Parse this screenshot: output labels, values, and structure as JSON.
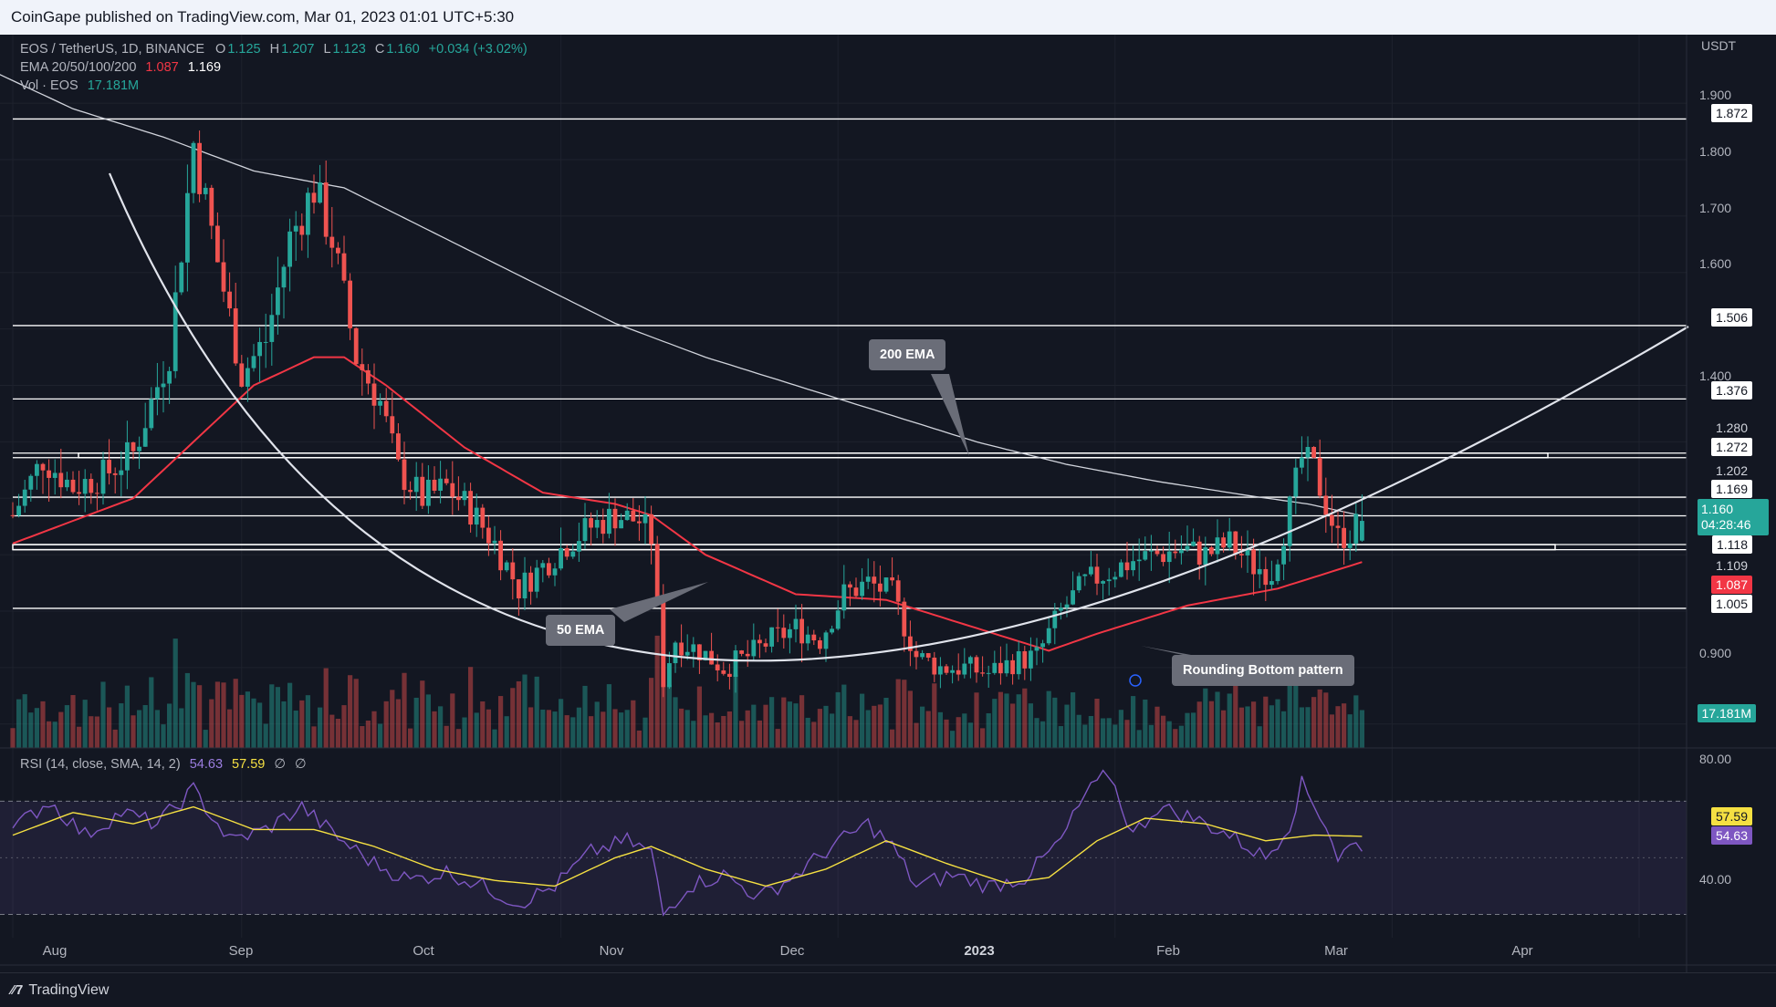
{
  "header": {
    "publisher_text": "CoinGape published on TradingView.com, Mar 01, 2023 01:01 UTC+5:30"
  },
  "legend": {
    "symbol": "EOS / TetherUS, 1D, BINANCE",
    "o_label": "O",
    "o_value": "1.125",
    "h_label": "H",
    "h_value": "1.207",
    "l_label": "L",
    "l_value": "1.123",
    "c_label": "C",
    "c_value": "1.160",
    "change": "+0.034 (+3.02%)",
    "ema_label": "EMA 20/50/100/200",
    "ema_val1": "1.087",
    "ema_val2": "1.169",
    "vol_label": "Vol · EOS",
    "vol_value": "17.181M",
    "rsi_label": "RSI (14, close, SMA, 14, 2)",
    "rsi_value": "54.63",
    "rsi_sma_value": "57.59",
    "rsi_extra1": "∅",
    "rsi_extra2": "∅"
  },
  "axis": {
    "currency": "USDT",
    "price_ticks": [
      "1.900",
      "1.800",
      "1.700",
      "1.600",
      "1.400",
      "0.900"
    ],
    "rsi_ticks": [
      "80.00",
      "40.00"
    ],
    "x_ticks": [
      "Aug",
      "Sep",
      "Oct",
      "Nov",
      "Dec",
      "2023",
      "Feb",
      "Mar",
      "Apr"
    ]
  },
  "price_tags": {
    "r1": "1.872",
    "r2": "1.506",
    "r3": "1.376",
    "r4a": "1.280",
    "r4b": "1.272",
    "r5a": "1.202",
    "r5b": "1.169",
    "current": "1.160",
    "countdown": "04:28:46",
    "s1a": "1.118",
    "s1b": "1.109",
    "ema50": "1.087",
    "s2": "1.005",
    "volume": "17.181M",
    "rsi_sma": "57.59",
    "rsi": "54.63"
  },
  "annotations": {
    "ema200": "200 EMA",
    "ema50": "50 EMA",
    "pattern": "Rounding Bottom pattern"
  },
  "footer": {
    "brand": "TradingView"
  },
  "colors": {
    "background": "#131722",
    "up": "#26a69a",
    "down": "#ef5350",
    "ema50": "#f23645",
    "ema200": "#d1d4dc",
    "rsi": "#7e57c2",
    "rsi_sma": "#f5e042"
  },
  "chart_data": {
    "type": "candlestick",
    "title": "EOS / TetherUS, 1D, BINANCE",
    "ylabel": "USDT",
    "ylim": [
      0.79,
      1.96
    ],
    "x_range": [
      "2023-07-25",
      "2024-04-13"
    ],
    "x_ticks": [
      "Aug",
      "Sep",
      "Oct",
      "Nov",
      "Dec",
      "2023",
      "Feb",
      "Mar",
      "Apr"
    ],
    "horizontal_levels": [
      1.872,
      1.506,
      1.376,
      1.28,
      1.272,
      1.202,
      1.169,
      1.118,
      1.109,
      1.005
    ],
    "close_anchors": [
      {
        "day": 0,
        "close": 1.17
      },
      {
        "day": 5,
        "close": 1.27
      },
      {
        "day": 10,
        "close": 1.22
      },
      {
        "day": 15,
        "close": 1.24
      },
      {
        "day": 20,
        "close": 1.28
      },
      {
        "day": 26,
        "close": 1.46
      },
      {
        "day": 30,
        "close": 1.83
      },
      {
        "day": 34,
        "close": 1.62
      },
      {
        "day": 38,
        "close": 1.42
      },
      {
        "day": 42,
        "close": 1.48
      },
      {
        "day": 46,
        "close": 1.66
      },
      {
        "day": 50,
        "close": 1.75
      },
      {
        "day": 53,
        "close": 1.66
      },
      {
        "day": 57,
        "close": 1.45
      },
      {
        "day": 61,
        "close": 1.37
      },
      {
        "day": 64,
        "close": 1.25
      },
      {
        "day": 68,
        "close": 1.2
      },
      {
        "day": 72,
        "close": 1.22
      },
      {
        "day": 76,
        "close": 1.18
      },
      {
        "day": 80,
        "close": 1.12
      },
      {
        "day": 84,
        "close": 1.04
      },
      {
        "day": 88,
        "close": 1.08
      },
      {
        "day": 92,
        "close": 1.12
      },
      {
        "day": 96,
        "close": 1.15
      },
      {
        "day": 100,
        "close": 1.17
      },
      {
        "day": 104,
        "close": 1.16
      },
      {
        "day": 106,
        "close": 1.13
      },
      {
        "day": 108,
        "close": 0.88
      },
      {
        "day": 110,
        "close": 0.95
      },
      {
        "day": 114,
        "close": 0.93
      },
      {
        "day": 118,
        "close": 0.9
      },
      {
        "day": 122,
        "close": 0.92
      },
      {
        "day": 126,
        "close": 0.95
      },
      {
        "day": 130,
        "close": 0.97
      },
      {
        "day": 134,
        "close": 0.95
      },
      {
        "day": 138,
        "close": 1.03
      },
      {
        "day": 142,
        "close": 1.05
      },
      {
        "day": 146,
        "close": 1.03
      },
      {
        "day": 150,
        "close": 0.92
      },
      {
        "day": 154,
        "close": 0.9
      },
      {
        "day": 158,
        "close": 0.9
      },
      {
        "day": 162,
        "close": 0.89
      },
      {
        "day": 166,
        "close": 0.91
      },
      {
        "day": 170,
        "close": 0.92
      },
      {
        "day": 174,
        "close": 1.0
      },
      {
        "day": 178,
        "close": 1.05
      },
      {
        "day": 182,
        "close": 1.07
      },
      {
        "day": 186,
        "close": 1.09
      },
      {
        "day": 190,
        "close": 1.1
      },
      {
        "day": 194,
        "close": 1.11
      },
      {
        "day": 198,
        "close": 1.1
      },
      {
        "day": 202,
        "close": 1.12
      },
      {
        "day": 206,
        "close": 1.08
      },
      {
        "day": 209,
        "close": 1.07
      },
      {
        "day": 212,
        "close": 1.18
      },
      {
        "day": 214,
        "close": 1.27
      },
      {
        "day": 216,
        "close": 1.25
      },
      {
        "day": 218,
        "close": 1.19
      },
      {
        "day": 220,
        "close": 1.13
      },
      {
        "day": 222,
        "close": 1.14
      },
      {
        "day": 224,
        "close": 1.16
      }
    ],
    "ema50_anchors": [
      {
        "day": 0,
        "value": 1.12
      },
      {
        "day": 20,
        "value": 1.2
      },
      {
        "day": 30,
        "value": 1.3
      },
      {
        "day": 40,
        "value": 1.4
      },
      {
        "day": 50,
        "value": 1.45
      },
      {
        "day": 55,
        "value": 1.45
      },
      {
        "day": 62,
        "value": 1.4
      },
      {
        "day": 75,
        "value": 1.29
      },
      {
        "day": 88,
        "value": 1.21
      },
      {
        "day": 100,
        "value": 1.19
      },
      {
        "day": 106,
        "value": 1.17
      },
      {
        "day": 115,
        "value": 1.1
      },
      {
        "day": 130,
        "value": 1.03
      },
      {
        "day": 145,
        "value": 1.02
      },
      {
        "day": 160,
        "value": 0.97
      },
      {
        "day": 172,
        "value": 0.93
      },
      {
        "day": 180,
        "value": 0.96
      },
      {
        "day": 195,
        "value": 1.01
      },
      {
        "day": 210,
        "value": 1.04
      },
      {
        "day": 224,
        "value": 1.087
      }
    ],
    "ema200_anchors": [
      {
        "day": -4,
        "value": 1.96
      },
      {
        "day": 10,
        "value": 1.89
      },
      {
        "day": 25,
        "value": 1.84
      },
      {
        "day": 40,
        "value": 1.78
      },
      {
        "day": 55,
        "value": 1.75
      },
      {
        "day": 70,
        "value": 1.67
      },
      {
        "day": 85,
        "value": 1.59
      },
      {
        "day": 100,
        "value": 1.51
      },
      {
        "day": 115,
        "value": 1.45
      },
      {
        "day": 130,
        "value": 1.4
      },
      {
        "day": 145,
        "value": 1.35
      },
      {
        "day": 160,
        "value": 1.3
      },
      {
        "day": 175,
        "value": 1.26
      },
      {
        "day": 190,
        "value": 1.23
      },
      {
        "day": 205,
        "value": 1.205
      },
      {
        "day": 215,
        "value": 1.19
      },
      {
        "day": 224,
        "value": 1.169
      }
    ],
    "rsi_anchors": [
      {
        "day": 0,
        "value": 60
      },
      {
        "day": 6,
        "value": 70
      },
      {
        "day": 12,
        "value": 58
      },
      {
        "day": 18,
        "value": 66
      },
      {
        "day": 24,
        "value": 62
      },
      {
        "day": 30,
        "value": 74
      },
      {
        "day": 36,
        "value": 56
      },
      {
        "day": 42,
        "value": 60
      },
      {
        "day": 48,
        "value": 68
      },
      {
        "day": 54,
        "value": 57
      },
      {
        "day": 60,
        "value": 48
      },
      {
        "day": 66,
        "value": 42
      },
      {
        "day": 72,
        "value": 45
      },
      {
        "day": 78,
        "value": 40
      },
      {
        "day": 84,
        "value": 34
      },
      {
        "day": 90,
        "value": 40
      },
      {
        "day": 96,
        "value": 52
      },
      {
        "day": 102,
        "value": 56
      },
      {
        "day": 106,
        "value": 52
      },
      {
        "day": 108,
        "value": 30
      },
      {
        "day": 112,
        "value": 40
      },
      {
        "day": 118,
        "value": 44
      },
      {
        "day": 124,
        "value": 36
      },
      {
        "day": 130,
        "value": 44
      },
      {
        "day": 136,
        "value": 54
      },
      {
        "day": 142,
        "value": 62
      },
      {
        "day": 146,
        "value": 54
      },
      {
        "day": 150,
        "value": 40
      },
      {
        "day": 156,
        "value": 44
      },
      {
        "day": 162,
        "value": 40
      },
      {
        "day": 168,
        "value": 43
      },
      {
        "day": 174,
        "value": 56
      },
      {
        "day": 178,
        "value": 72
      },
      {
        "day": 182,
        "value": 80
      },
      {
        "day": 186,
        "value": 58
      },
      {
        "day": 190,
        "value": 68
      },
      {
        "day": 196,
        "value": 64
      },
      {
        "day": 202,
        "value": 58
      },
      {
        "day": 208,
        "value": 50
      },
      {
        "day": 212,
        "value": 62
      },
      {
        "day": 214,
        "value": 76
      },
      {
        "day": 218,
        "value": 62
      },
      {
        "day": 220,
        "value": 50
      },
      {
        "day": 222,
        "value": 54
      },
      {
        "day": 224,
        "value": 54.63
      }
    ],
    "rsi_sma_anchors": [
      {
        "day": 0,
        "value": 58
      },
      {
        "day": 10,
        "value": 66
      },
      {
        "day": 20,
        "value": 62
      },
      {
        "day": 30,
        "value": 68
      },
      {
        "day": 40,
        "value": 60
      },
      {
        "day": 50,
        "value": 60
      },
      {
        "day": 60,
        "value": 54
      },
      {
        "day": 70,
        "value": 46
      },
      {
        "day": 80,
        "value": 42
      },
      {
        "day": 90,
        "value": 40
      },
      {
        "day": 100,
        "value": 50
      },
      {
        "day": 106,
        "value": 54
      },
      {
        "day": 115,
        "value": 46
      },
      {
        "day": 125,
        "value": 40
      },
      {
        "day": 135,
        "value": 46
      },
      {
        "day": 145,
        "value": 56
      },
      {
        "day": 155,
        "value": 48
      },
      {
        "day": 165,
        "value": 41
      },
      {
        "day": 172,
        "value": 43
      },
      {
        "day": 180,
        "value": 56
      },
      {
        "day": 188,
        "value": 64
      },
      {
        "day": 198,
        "value": 62
      },
      {
        "day": 208,
        "value": 56
      },
      {
        "day": 216,
        "value": 58
      },
      {
        "day": 224,
        "value": 57.59
      }
    ],
    "rsi_levels": [
      70,
      30
    ],
    "rsi_ylim": [
      25,
      83
    ]
  }
}
